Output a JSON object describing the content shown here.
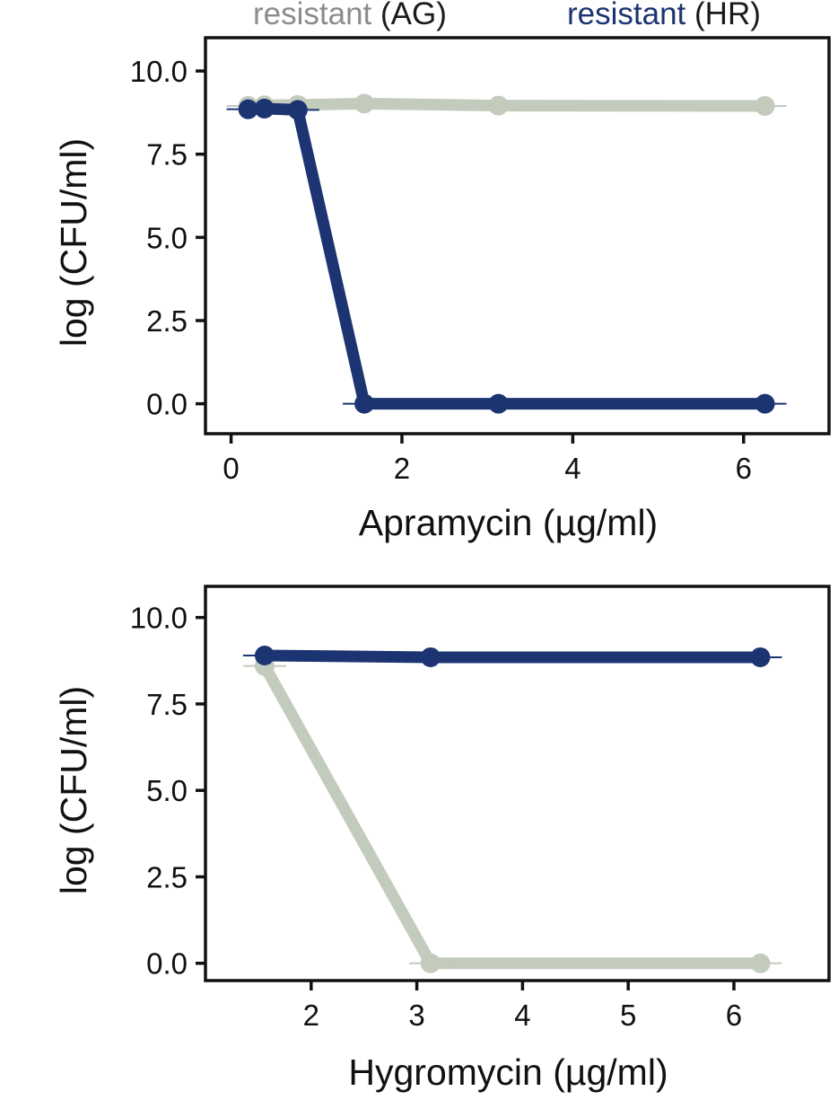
{
  "legend": {
    "items": [
      {
        "word": "resistant",
        "code": "(AG)",
        "color": "#8c8c8c",
        "series_color": "#c3cbbd"
      },
      {
        "word": "resistant",
        "code": "(HR)",
        "color": "#1d3472",
        "series_color": "#1d3472"
      }
    ]
  },
  "chart_data": [
    {
      "type": "line",
      "title": "",
      "xlabel": "Apramycin (µg/ml)",
      "ylabel": "log (CFU/ml)",
      "xlim": [
        -0.3,
        7.0
      ],
      "ylim": [
        -0.9,
        11.0
      ],
      "xticks": [
        0,
        2,
        4,
        6
      ],
      "xtick_labels": [
        "0",
        "2",
        "4",
        "6"
      ],
      "yticks": [
        0,
        2.5,
        5,
        7.5,
        10
      ],
      "ytick_labels": [
        "0.0",
        "2.5",
        "5.0",
        "7.5",
        "10.0"
      ],
      "grid": false,
      "series": [
        {
          "name": "resistant (AG)",
          "color": "#c3cbbd",
          "x": [
            0.2,
            0.39,
            0.78,
            1.56,
            3.13,
            6.25
          ],
          "values": [
            8.95,
            8.97,
            8.98,
            9.02,
            8.96,
            8.95
          ]
        },
        {
          "name": "resistant (HR)",
          "color": "#1d3472",
          "x": [
            0.2,
            0.39,
            0.78,
            1.56,
            3.13,
            6.25
          ],
          "values": [
            8.85,
            8.87,
            8.83,
            0.0,
            0.0,
            0.0
          ]
        }
      ]
    },
    {
      "type": "line",
      "title": "",
      "xlabel": "Hygromycin (µg/ml)",
      "ylabel": "log (CFU/ml)",
      "xlim": [
        1.0,
        6.9
      ],
      "ylim": [
        -0.5,
        10.9
      ],
      "xticks": [
        2,
        3,
        4,
        5,
        6
      ],
      "xtick_labels": [
        "2",
        "3",
        "4",
        "5",
        "6"
      ],
      "yticks": [
        0,
        2.5,
        5,
        7.5,
        10
      ],
      "ytick_labels": [
        "0.0",
        "2.5",
        "5.0",
        "7.5",
        "10.0"
      ],
      "grid": false,
      "series": [
        {
          "name": "resistant (AG)",
          "color": "#c3cbbd",
          "x": [
            1.56,
            3.13,
            6.25
          ],
          "values": [
            8.6,
            0.0,
            0.0
          ]
        },
        {
          "name": "resistant (HR)",
          "color": "#1d3472",
          "x": [
            1.56,
            3.13,
            6.25
          ],
          "values": [
            8.9,
            8.85,
            8.85
          ]
        }
      ]
    }
  ]
}
